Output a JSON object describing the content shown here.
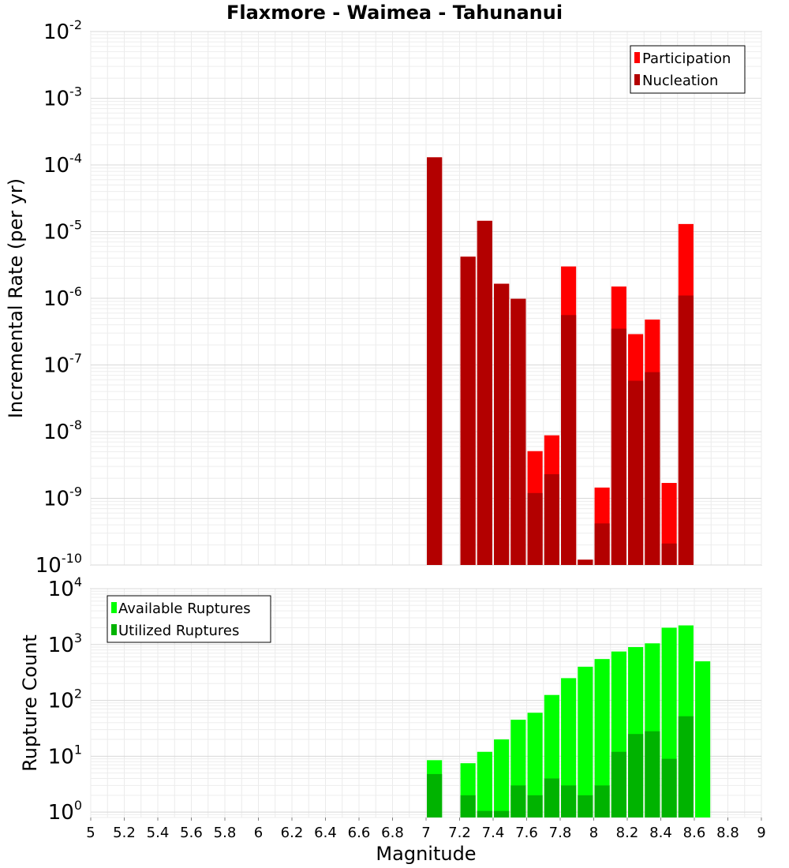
{
  "chart_data": [
    {
      "type": "bar",
      "title": "Flaxmore - Waimea - Tahunanui",
      "xlabel": "Magnitude",
      "ylabel": "Incremental Rate (per yr)",
      "yscale": "log",
      "ylim": [
        1e-10,
        0.01
      ],
      "xlim": [
        5,
        9
      ],
      "grid": true,
      "legend_position": "top-right",
      "bar_width": 0.09,
      "overlay": true,
      "series": [
        {
          "name": "Participation",
          "color": "#ff0000",
          "x": [
            7.05,
            7.25,
            7.35,
            7.45,
            7.55,
            7.65,
            7.75,
            7.85,
            7.95,
            8.05,
            8.15,
            8.25,
            8.35,
            8.45,
            8.55
          ],
          "values": [
            0.00013,
            4.2e-06,
            1.45e-05,
            1.65e-06,
            9.8e-07,
            5.1e-09,
            8.8e-09,
            3e-06,
            1.2e-10,
            1.45e-09,
            1.5e-06,
            2.9e-07,
            4.8e-07,
            1.7e-09,
            1.3e-05
          ]
        },
        {
          "name": "Nucleation",
          "color": "#b30000",
          "x": [
            7.05,
            7.25,
            7.35,
            7.45,
            7.55,
            7.65,
            7.75,
            7.85,
            7.95,
            8.05,
            8.15,
            8.25,
            8.35,
            8.45,
            8.55
          ],
          "values": [
            0.00013,
            4.2e-06,
            1.45e-05,
            1.65e-06,
            9.8e-07,
            1.2e-09,
            2.3e-09,
            5.6e-07,
            1.2e-10,
            4.2e-10,
            3.5e-07,
            5.8e-08,
            7.8e-08,
            2.1e-10,
            1.1e-06
          ]
        }
      ]
    },
    {
      "type": "bar",
      "xlabel": "Magnitude",
      "ylabel": "Rupture Count",
      "yscale": "log",
      "ylim": [
        0.8,
        10000
      ],
      "xlim": [
        5,
        9
      ],
      "grid": true,
      "legend_position": "top-left",
      "bar_width": 0.09,
      "overlay": true,
      "series": [
        {
          "name": "Available Ruptures",
          "color": "#00ff00",
          "x": [
            7.05,
            7.25,
            7.35,
            7.45,
            7.55,
            7.65,
            7.75,
            7.85,
            7.95,
            8.05,
            8.15,
            8.25,
            8.35,
            8.45,
            8.55,
            8.65
          ],
          "values": [
            8.5,
            7.5,
            12,
            20,
            45,
            60,
            125,
            250,
            400,
            550,
            750,
            900,
            1050,
            2000,
            2200,
            500
          ]
        },
        {
          "name": "Utilized Ruptures",
          "color": "#00b300",
          "x": [
            7.05,
            7.25,
            7.35,
            7.45,
            7.55,
            7.65,
            7.75,
            7.85,
            7.95,
            8.05,
            8.15,
            8.25,
            8.35,
            8.45,
            8.55
          ],
          "values": [
            4.8,
            2,
            1.05,
            1.05,
            3,
            2,
            4,
            3,
            2,
            3,
            12,
            25,
            28,
            9,
            52
          ]
        }
      ],
      "x_ticks": [
        "5",
        "5.2",
        "5.4",
        "5.6",
        "5.8",
        "6",
        "6.2",
        "6.4",
        "6.6",
        "6.8",
        "7",
        "7.2",
        "7.4",
        "7.6",
        "7.8",
        "8",
        "8.2",
        "8.4",
        "8.6",
        "8.8",
        "9"
      ]
    }
  ]
}
